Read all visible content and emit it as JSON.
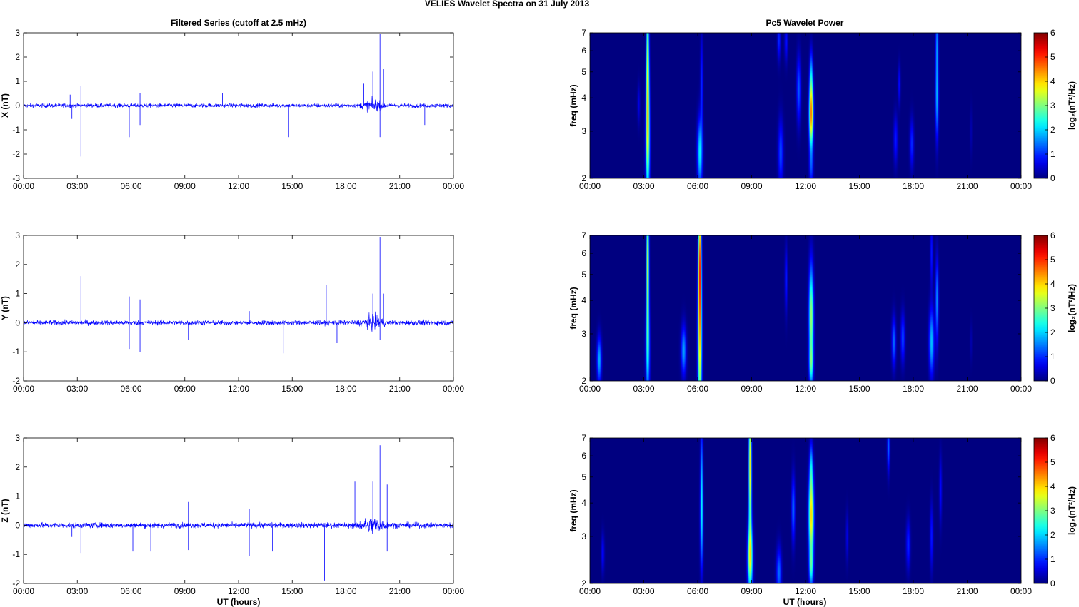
{
  "figure": {
    "title": "VELIES Wavelet Spectra on 31 July      2013",
    "left_title": "Filtered Series (cutoff at 2.5 mHz)",
    "right_title": "Pc5 Wavelet Power",
    "x_axis_label": "UT (hours)",
    "colorbar_label": "log₂(nT²/Hz)",
    "trace_color": "#0000ff"
  },
  "chart_data": [
    {
      "type": "line",
      "name": "X (nT)",
      "ylabel": "X (nT)",
      "xlim": [
        0,
        24
      ],
      "ylim": [
        -3,
        3
      ],
      "xticks": [
        "00:00",
        "03:00",
        "06:00",
        "09:00",
        "12:00",
        "15:00",
        "18:00",
        "21:00",
        "00:00"
      ],
      "yticks": [
        -3,
        -2,
        -1,
        0,
        1,
        2,
        3
      ],
      "baseline_noise": 0.08,
      "spikes": [
        [
          2.6,
          0.45
        ],
        [
          2.7,
          -0.55
        ],
        [
          3.2,
          0.8
        ],
        [
          3.2,
          -2.1
        ],
        [
          5.9,
          -1.3
        ],
        [
          6.5,
          0.5
        ],
        [
          6.5,
          -0.8
        ],
        [
          11.1,
          0.5
        ],
        [
          14.8,
          -1.3
        ],
        [
          18.0,
          -1.0
        ],
        [
          19.0,
          0.9
        ],
        [
          19.5,
          1.4
        ],
        [
          19.9,
          2.95
        ],
        [
          19.9,
          -1.3
        ],
        [
          20.1,
          1.5
        ],
        [
          22.4,
          -0.8
        ]
      ],
      "bursts": [
        [
          19.5,
          1.5,
          0.18
        ]
      ]
    },
    {
      "type": "line",
      "name": "Y (nT)",
      "ylabel": "Y (nT)",
      "xlim": [
        0,
        24
      ],
      "ylim": [
        -2,
        3
      ],
      "xticks": [
        "00:00",
        "03:00",
        "06:00",
        "09:00",
        "12:00",
        "15:00",
        "18:00",
        "21:00",
        "00:00"
      ],
      "yticks": [
        -2,
        -1,
        0,
        1,
        2,
        3
      ],
      "baseline_noise": 0.08,
      "spikes": [
        [
          3.2,
          1.6
        ],
        [
          5.9,
          -0.9
        ],
        [
          5.9,
          0.9
        ],
        [
          6.5,
          -1.0
        ],
        [
          6.5,
          0.8
        ],
        [
          9.2,
          -0.6
        ],
        [
          12.6,
          0.4
        ],
        [
          14.5,
          -1.05
        ],
        [
          16.9,
          1.3
        ],
        [
          17.5,
          -0.7
        ],
        [
          19.5,
          1.0
        ],
        [
          19.9,
          2.95
        ],
        [
          19.9,
          -0.6
        ],
        [
          20.1,
          1.0
        ]
      ],
      "bursts": [
        [
          19.5,
          1.5,
          0.18
        ]
      ]
    },
    {
      "type": "line",
      "name": "Z (nT)",
      "ylabel": "Z (nT)",
      "xlim": [
        0,
        24
      ],
      "ylim": [
        -2,
        3
      ],
      "xticks": [
        "00:00",
        "03:00",
        "06:00",
        "09:00",
        "12:00",
        "15:00",
        "18:00",
        "21:00",
        "00:00"
      ],
      "yticks": [
        -2,
        -1,
        0,
        1,
        2,
        3
      ],
      "baseline_noise": 0.09,
      "spikes": [
        [
          2.7,
          -0.4
        ],
        [
          3.2,
          -0.95
        ],
        [
          6.1,
          -0.9
        ],
        [
          7.1,
          -0.9
        ],
        [
          9.2,
          0.8
        ],
        [
          9.2,
          -0.85
        ],
        [
          12.6,
          -1.05
        ],
        [
          12.6,
          0.55
        ],
        [
          13.9,
          -0.9
        ],
        [
          16.8,
          -1.9
        ],
        [
          18.5,
          1.5
        ],
        [
          19.5,
          1.5
        ],
        [
          19.9,
          2.75
        ],
        [
          20.3,
          1.4
        ],
        [
          20.3,
          -0.9
        ]
      ],
      "bursts": [
        [
          19.5,
          1.8,
          0.22
        ]
      ]
    },
    {
      "type": "heatmap",
      "name": "Pc5 Wavelet Power X",
      "ylabel": "freq (mHz)",
      "yscale": "log",
      "xlim": [
        0,
        24
      ],
      "ylim": [
        2,
        7
      ],
      "clim": [
        0,
        6
      ],
      "xticks": [
        "00:00",
        "03:00",
        "06:00",
        "09:00",
        "12:00",
        "15:00",
        "18:00",
        "21:00",
        "00:00"
      ],
      "yticks": [
        2,
        3,
        4,
        5,
        6,
        7
      ],
      "cticks": [
        0,
        1,
        2,
        3,
        4,
        5,
        6
      ],
      "colorbar_label": "log₂(nT²/Hz)",
      "blobs": [
        [
          3.2,
          2.7,
          0.08,
          0.35,
          2.8
        ],
        [
          3.2,
          4.2,
          0.06,
          0.35,
          2.2
        ],
        [
          3.2,
          6.5,
          0.05,
          0.3,
          2.0
        ],
        [
          2.7,
          3.8,
          0.05,
          0.12,
          0.6
        ],
        [
          6.1,
          2.5,
          0.1,
          0.2,
          2.2
        ],
        [
          6.2,
          4.5,
          0.05,
          0.3,
          1.0
        ],
        [
          10.6,
          2.5,
          0.1,
          0.2,
          1.2
        ],
        [
          10.5,
          6.6,
          0.06,
          0.12,
          1.0
        ],
        [
          10.9,
          6.5,
          0.06,
          0.12,
          0.9
        ],
        [
          11.6,
          4.3,
          0.08,
          0.2,
          1.3
        ],
        [
          12.3,
          3.5,
          0.08,
          0.2,
          4.6
        ],
        [
          12.3,
          2.2,
          0.08,
          0.12,
          1.0
        ],
        [
          12.3,
          5.0,
          0.06,
          0.15,
          1.2
        ],
        [
          17.0,
          2.8,
          0.08,
          0.15,
          0.9
        ],
        [
          17.2,
          4.5,
          0.05,
          0.12,
          0.8
        ],
        [
          17.9,
          2.7,
          0.08,
          0.15,
          1.0
        ],
        [
          19.3,
          4.0,
          0.06,
          0.25,
          1.8
        ],
        [
          19.3,
          6.5,
          0.05,
          0.2,
          1.4
        ],
        [
          21.2,
          3.0,
          0.04,
          0.15,
          0.3
        ]
      ]
    },
    {
      "type": "heatmap",
      "name": "Pc5 Wavelet Power Y",
      "ylabel": "freq (mHz)",
      "yscale": "log",
      "xlim": [
        0,
        24
      ],
      "ylim": [
        2,
        7
      ],
      "clim": [
        0,
        6
      ],
      "xticks": [
        "00:00",
        "03:00",
        "06:00",
        "09:00",
        "12:00",
        "15:00",
        "18:00",
        "21:00",
        "00:00"
      ],
      "yticks": [
        2,
        3,
        4,
        5,
        6,
        7
      ],
      "cticks": [
        0,
        1,
        2,
        3,
        4,
        5,
        6
      ],
      "colorbar_label": "log₂(nT²/Hz)",
      "blobs": [
        [
          0.5,
          2.4,
          0.09,
          0.14,
          1.8
        ],
        [
          3.2,
          2.6,
          0.08,
          0.3,
          2.0
        ],
        [
          3.2,
          4.5,
          0.05,
          0.35,
          2.2
        ],
        [
          3.2,
          6.6,
          0.05,
          0.3,
          2.0
        ],
        [
          5.2,
          2.6,
          0.1,
          0.15,
          1.7
        ],
        [
          6.1,
          2.8,
          0.08,
          0.5,
          3.6
        ],
        [
          6.1,
          5.0,
          0.06,
          0.35,
          2.4
        ],
        [
          6.1,
          6.7,
          0.05,
          0.3,
          2.0
        ],
        [
          10.9,
          4.8,
          0.05,
          0.2,
          1.0
        ],
        [
          12.3,
          3.5,
          0.09,
          0.3,
          3.2
        ],
        [
          12.3,
          2.3,
          0.08,
          0.12,
          1.8
        ],
        [
          16.9,
          2.8,
          0.08,
          0.15,
          1.4
        ],
        [
          17.4,
          2.9,
          0.08,
          0.15,
          1.2
        ],
        [
          19.0,
          2.8,
          0.1,
          0.2,
          1.9
        ],
        [
          19.3,
          4.0,
          0.06,
          0.25,
          1.6
        ],
        [
          19.0,
          6.0,
          0.05,
          0.2,
          0.9
        ],
        [
          21.2,
          2.8,
          0.04,
          0.12,
          0.3
        ]
      ]
    },
    {
      "type": "heatmap",
      "name": "Pc5 Wavelet Power Z",
      "ylabel": "freq (mHz)",
      "yscale": "log",
      "xlim": [
        0,
        24
      ],
      "ylim": [
        2,
        7
      ],
      "clim": [
        0,
        6
      ],
      "xticks": [
        "00:00",
        "03:00",
        "06:00",
        "09:00",
        "12:00",
        "15:00",
        "18:00",
        "21:00",
        "00:00"
      ],
      "yticks": [
        2,
        3,
        4,
        5,
        6,
        7
      ],
      "cticks": [
        0,
        1,
        2,
        3,
        4,
        5,
        6
      ],
      "colorbar_label": "log₂(nT²/Hz)",
      "blobs": [
        [
          0.7,
          2.6,
          0.06,
          0.12,
          0.8
        ],
        [
          6.2,
          3.4,
          0.06,
          0.3,
          1.8
        ],
        [
          6.2,
          5.4,
          0.05,
          0.3,
          1.2
        ],
        [
          8.9,
          2.5,
          0.1,
          0.2,
          3.4
        ],
        [
          8.9,
          4.5,
          0.06,
          0.35,
          2.4
        ],
        [
          8.9,
          6.5,
          0.05,
          0.3,
          2.2
        ],
        [
          10.5,
          2.2,
          0.1,
          0.15,
          1.4
        ],
        [
          11.3,
          3.8,
          0.07,
          0.2,
          1.4
        ],
        [
          12.3,
          3.6,
          0.1,
          0.25,
          4.0
        ],
        [
          12.3,
          2.3,
          0.08,
          0.12,
          2.0
        ],
        [
          12.3,
          5.5,
          0.06,
          0.15,
          1.4
        ],
        [
          14.3,
          3.0,
          0.05,
          0.15,
          0.6
        ],
        [
          16.6,
          6.5,
          0.05,
          0.15,
          1.4
        ],
        [
          17.7,
          2.8,
          0.08,
          0.15,
          1.0
        ],
        [
          19.0,
          3.0,
          0.06,
          0.2,
          0.9
        ],
        [
          19.5,
          4.5,
          0.05,
          0.2,
          0.8
        ]
      ]
    }
  ]
}
